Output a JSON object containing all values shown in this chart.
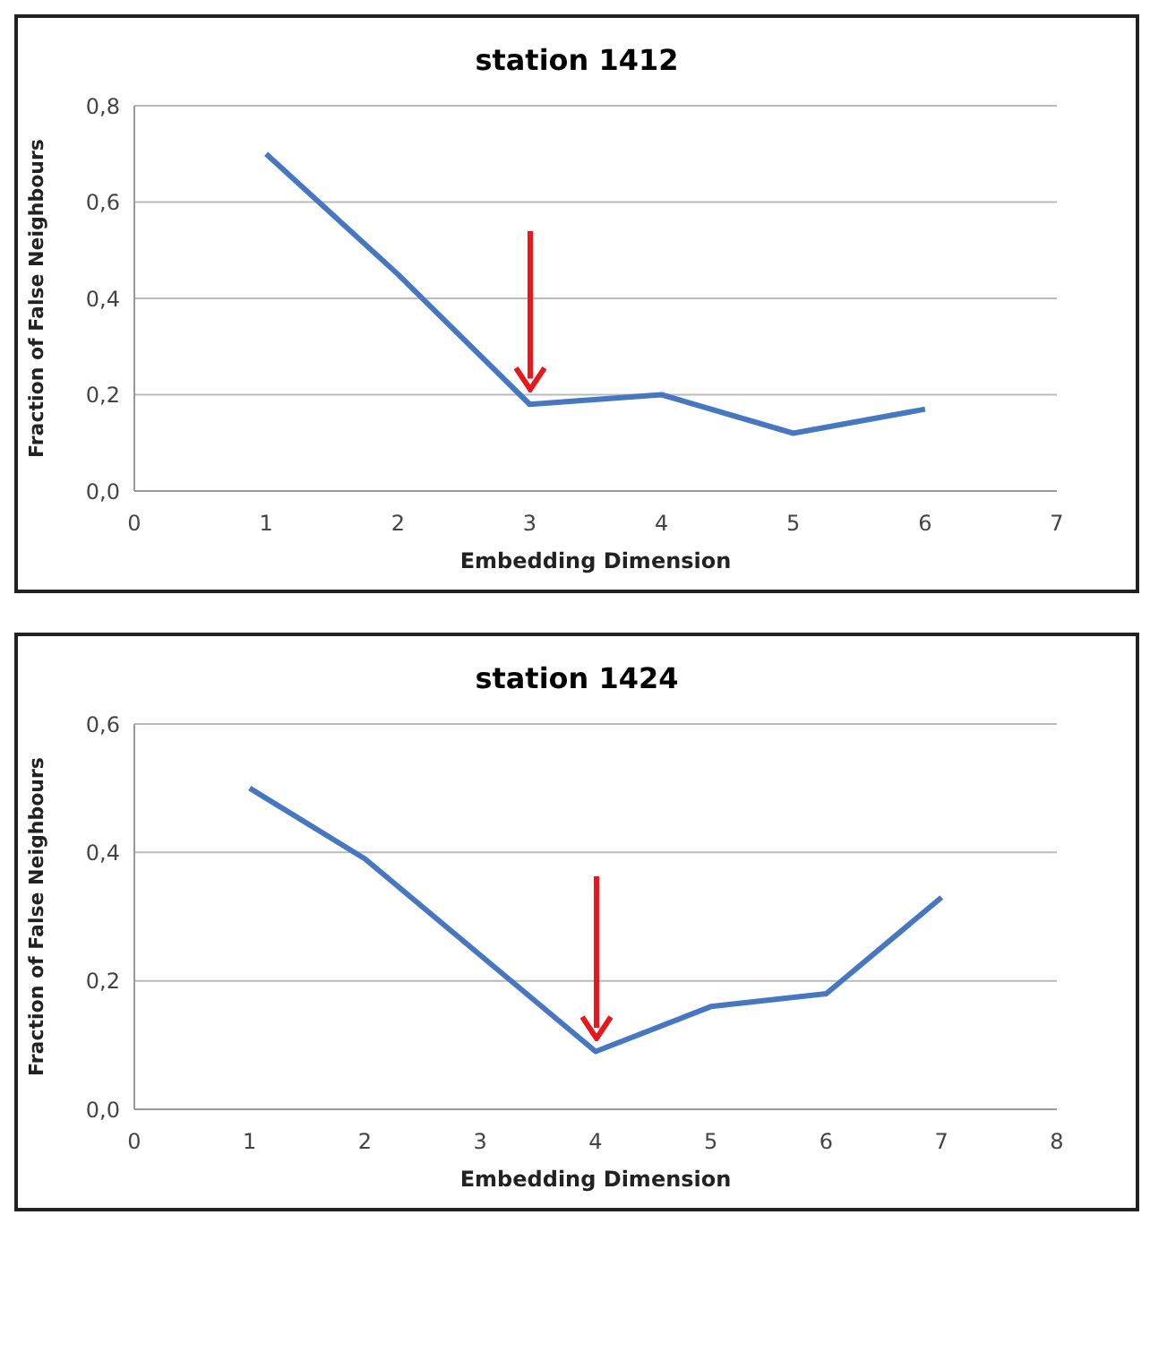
{
  "chart_data": [
    {
      "type": "line",
      "title": "station 1412",
      "xlabel": "Embedding Dimension",
      "ylabel": "Fraction of False Neighbours",
      "x": [
        1,
        2,
        3,
        4,
        5,
        6
      ],
      "series": [
        {
          "color": "#4677c0",
          "values": [
            0.7,
            0.45,
            0.18,
            0.2,
            0.12,
            0.17
          ]
        }
      ],
      "xlim": [
        0,
        7
      ],
      "xticks": [
        0,
        1,
        2,
        3,
        4,
        5,
        6,
        7
      ],
      "ylim": [
        0,
        0.8
      ],
      "yticks": [
        {
          "value": 0,
          "label": "0,0"
        },
        {
          "value": 0.2,
          "label": "0,2"
        },
        {
          "value": 0.4,
          "label": "0,4"
        },
        {
          "value": 0.6,
          "label": "0,6"
        },
        {
          "value": 0.8,
          "label": "0,8"
        }
      ],
      "grid": "y",
      "legend": false,
      "marker": "none",
      "line_style": "solid"
    },
    {
      "type": "line",
      "title": "station 1424",
      "xlabel": "Embedding Dimension",
      "ylabel": "Fraction of False Neighbours",
      "x": [
        1,
        2,
        3,
        4,
        5,
        6,
        7
      ],
      "series": [
        {
          "color": "#4677c0",
          "values": [
            0.5,
            0.39,
            0.24,
            0.09,
            0.16,
            0.18,
            0.33
          ]
        }
      ],
      "xlim": [
        0,
        8
      ],
      "xticks": [
        0,
        1,
        2,
        3,
        4,
        5,
        6,
        7,
        8
      ],
      "ylim": [
        0,
        0.6
      ],
      "yticks": [
        {
          "value": 0,
          "label": "0,0"
        },
        {
          "value": 0.2,
          "label": "0,2"
        },
        {
          "value": 0.4,
          "label": "0,4"
        },
        {
          "value": 0.6,
          "label": "0,6"
        }
      ],
      "grid": "y",
      "legend": false,
      "marker": "none",
      "line_style": "solid"
    }
  ]
}
